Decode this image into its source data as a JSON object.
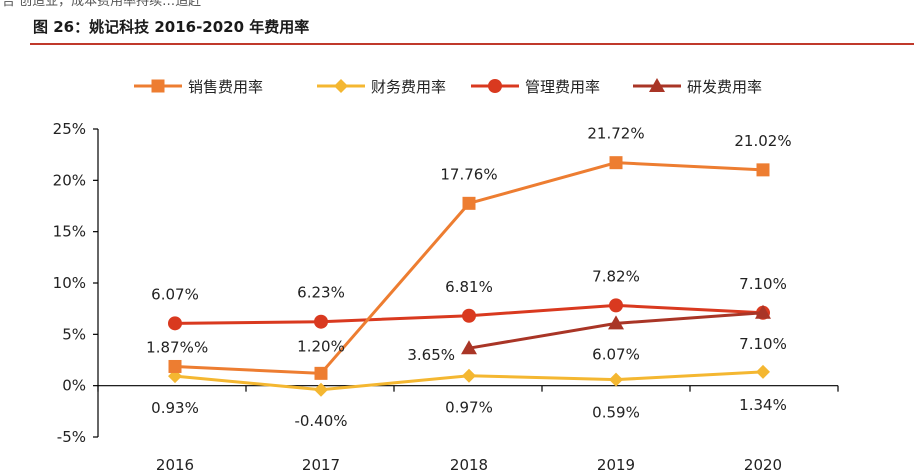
{
  "top_text": "告 创造业，成本费用率持续…追赶",
  "figure": {
    "title": "图 26：姚记科技 2016-2020 年费用率"
  },
  "chart_data": {
    "type": "line",
    "title": "",
    "xlabel": "",
    "ylabel": "",
    "categories": [
      "2016",
      "2017",
      "2018",
      "2019",
      "2020"
    ],
    "ylim": [
      -5,
      25
    ],
    "yticks": [
      "-5%",
      "0%",
      "5%",
      "10%",
      "15%",
      "20%",
      "25%"
    ],
    "grid": false,
    "legend_position": "top",
    "series": [
      {
        "name": "销售费用率",
        "color": "#ED7D31",
        "marker": "square",
        "values": [
          1.87,
          1.2,
          17.76,
          21.72,
          21.02
        ],
        "labels": [
          "1.87%",
          "1.20%",
          "17.76%",
          "21.72%",
          "21.02%"
        ]
      },
      {
        "name": "财务费用率",
        "color": "#F4B731",
        "marker": "diamond",
        "values": [
          0.93,
          -0.4,
          0.97,
          0.59,
          1.34
        ],
        "labels": [
          "0.93%",
          "-0.40%",
          "0.97%",
          "0.59%",
          "1.34%"
        ]
      },
      {
        "name": "管理费用率",
        "color": "#D9391F",
        "marker": "circle",
        "values": [
          6.07,
          6.23,
          6.81,
          7.82,
          7.1
        ],
        "labels": [
          "6.07%",
          "6.23%",
          "6.81%",
          "7.82%",
          "7.10%"
        ]
      },
      {
        "name": "研发费用率",
        "color": "#A93526",
        "marker": "triangle",
        "values": [
          null,
          null,
          3.65,
          6.07,
          7.1
        ],
        "labels": [
          "",
          "",
          "3.65%",
          "6.07%",
          "7.10%"
        ]
      }
    ],
    "extra_labels": [
      "%"
    ]
  }
}
